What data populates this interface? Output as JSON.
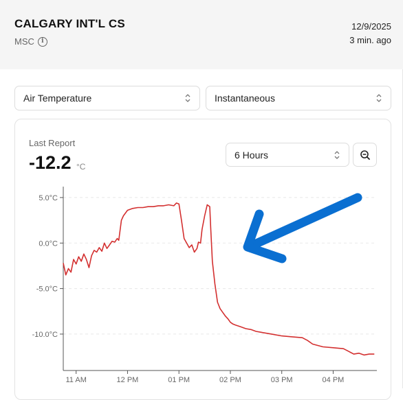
{
  "header": {
    "station_name": "CALGARY INT'L CS",
    "network": "MSC",
    "date": "12/9/2025",
    "updated_ago": "3 min. ago"
  },
  "controls": {
    "parameter": "Air Temperature",
    "mode": "Instantaneous",
    "range": "6 Hours"
  },
  "last_report": {
    "label": "Last Report",
    "value": "-12.2",
    "unit": "°C"
  },
  "colors": {
    "line": "#d32f2f",
    "annotation_arrow": "#0a6fd1"
  },
  "chart_data": {
    "type": "line",
    "title": "",
    "xlabel": "",
    "ylabel": "",
    "x_ticks": [
      "11 AM",
      "12 PM",
      "01 PM",
      "02 PM",
      "03 PM",
      "04 PM"
    ],
    "y_ticks": [
      "5.0°C",
      "0.0°C",
      "-5.0°C",
      "-10.0°C"
    ],
    "y_tick_values": [
      5,
      0,
      -5,
      -10
    ],
    "xlim": [
      10.75,
      16.85
    ],
    "ylim": [
      -14,
      6.2
    ],
    "grid": true,
    "series": [
      {
        "name": "",
        "x": [
          10.75,
          10.8,
          10.85,
          10.9,
          10.95,
          11.0,
          11.05,
          11.1,
          11.15,
          11.2,
          11.25,
          11.3,
          11.35,
          11.4,
          11.45,
          11.5,
          11.55,
          11.6,
          11.65,
          11.7,
          11.75,
          11.8,
          11.83,
          11.88,
          11.92,
          12.0,
          12.1,
          12.2,
          12.3,
          12.4,
          12.5,
          12.6,
          12.7,
          12.8,
          12.9,
          12.95,
          13.0,
          13.05,
          13.1,
          13.15,
          13.2,
          13.25,
          13.3,
          13.35,
          13.38,
          13.42,
          13.45,
          13.5,
          13.55,
          13.6,
          13.62,
          13.65,
          13.7,
          13.75,
          13.8,
          13.85,
          13.9,
          13.95,
          14.0,
          14.05,
          14.1,
          14.2,
          14.3,
          14.4,
          14.5,
          14.6,
          14.8,
          15.0,
          15.2,
          15.4,
          15.5,
          15.6,
          15.8,
          16.0,
          16.2,
          16.3,
          16.4,
          16.5,
          16.6,
          16.7,
          16.8
        ],
        "y": [
          -2.2,
          -3.5,
          -2.8,
          -3.2,
          -1.8,
          -2.3,
          -1.5,
          -2.0,
          -1.2,
          -1.8,
          -2.7,
          -1.4,
          -0.8,
          -1.0,
          -0.5,
          -0.9,
          0.0,
          -0.6,
          -0.2,
          0.2,
          0.1,
          0.5,
          0.3,
          2.5,
          3.0,
          3.6,
          3.8,
          3.9,
          3.9,
          4.0,
          4.0,
          4.1,
          4.1,
          4.2,
          4.1,
          4.4,
          4.3,
          2.5,
          0.5,
          0.0,
          -0.5,
          -0.2,
          -1.0,
          -0.6,
          0.1,
          0.0,
          1.5,
          3.0,
          4.2,
          4.0,
          1.5,
          -2.0,
          -4.5,
          -6.5,
          -7.2,
          -7.6,
          -8.0,
          -8.3,
          -8.7,
          -8.9,
          -9.0,
          -9.2,
          -9.4,
          -9.5,
          -9.7,
          -9.8,
          -10.0,
          -10.2,
          -10.3,
          -10.4,
          -10.7,
          -11.1,
          -11.4,
          -11.5,
          -11.6,
          -11.9,
          -12.2,
          -12.1,
          -12.3,
          -12.2,
          -12.2
        ]
      }
    ]
  }
}
